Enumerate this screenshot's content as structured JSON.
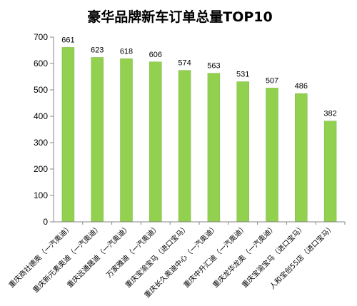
{
  "chart_data": {
    "type": "bar",
    "title": "豪华品牌新车订单总量TOP10",
    "xlabel": "",
    "ylabel": "",
    "ylim": [
      0,
      700
    ],
    "yticks": [
      0,
      100,
      200,
      300,
      400,
      500,
      600,
      700
    ],
    "grid": false,
    "legend": "none",
    "bar_color": "#92d050",
    "bar_edge_color": "#7fb53f",
    "categories": [
      "重庆商社德奥（一汽奥迪）",
      "重庆新元素奥迪（一汽奥迪）",
      "重庆远通晟迪（一汽奥迪）",
      "万家雅迪（一汽奥迪）",
      "重庆宝渝宝马（进口宝马）",
      "重庆长久奥迪中心（一汽奥迪）",
      "重庆中升汇迪（一汽奥迪）",
      "重庆龙华龙奥（一汽奥迪）",
      "重庆宝渝宝马（进口宝马）",
      "人和宝创55店（进口宝马）"
    ],
    "values": [
      661,
      623,
      618,
      606,
      574,
      563,
      531,
      507,
      486,
      382
    ]
  }
}
